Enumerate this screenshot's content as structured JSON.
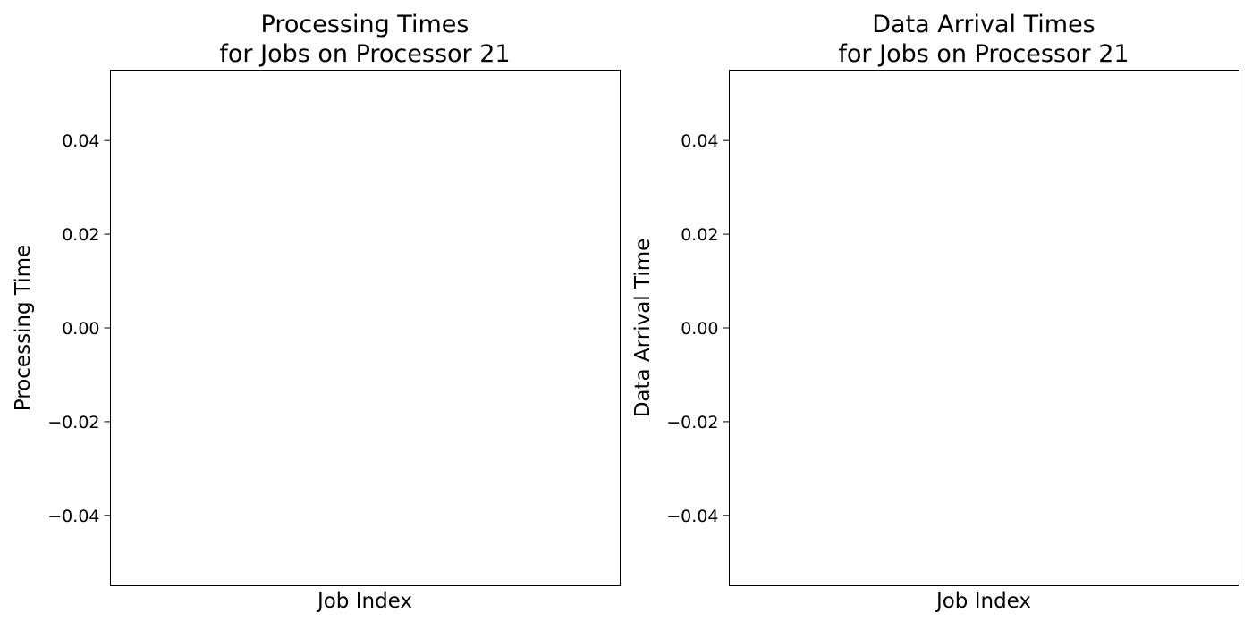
{
  "chart_data": [
    {
      "type": "bar",
      "title_lines": [
        "Processing Times",
        "for Jobs on Processor 21"
      ],
      "xlabel": "Job Index",
      "ylabel": "Processing Time",
      "ylim": [
        -0.055,
        0.055
      ],
      "yticks": [
        0.04,
        0.02,
        0.0,
        -0.02,
        -0.04
      ],
      "ytick_labels": [
        "0.04",
        "0.02",
        "0.00",
        "−0.02",
        "−0.04"
      ],
      "categories": [],
      "values": [],
      "grid": false
    },
    {
      "type": "bar",
      "title_lines": [
        "Data Arrival Times",
        "for Jobs on Processor 21"
      ],
      "xlabel": "Job Index",
      "ylabel": "Data Arrival Time",
      "ylim": [
        -0.055,
        0.055
      ],
      "yticks": [
        0.04,
        0.02,
        0.0,
        -0.02,
        -0.04
      ],
      "ytick_labels": [
        "0.04",
        "0.02",
        "0.00",
        "−0.02",
        "−0.04"
      ],
      "categories": [],
      "values": [],
      "grid": false
    }
  ]
}
